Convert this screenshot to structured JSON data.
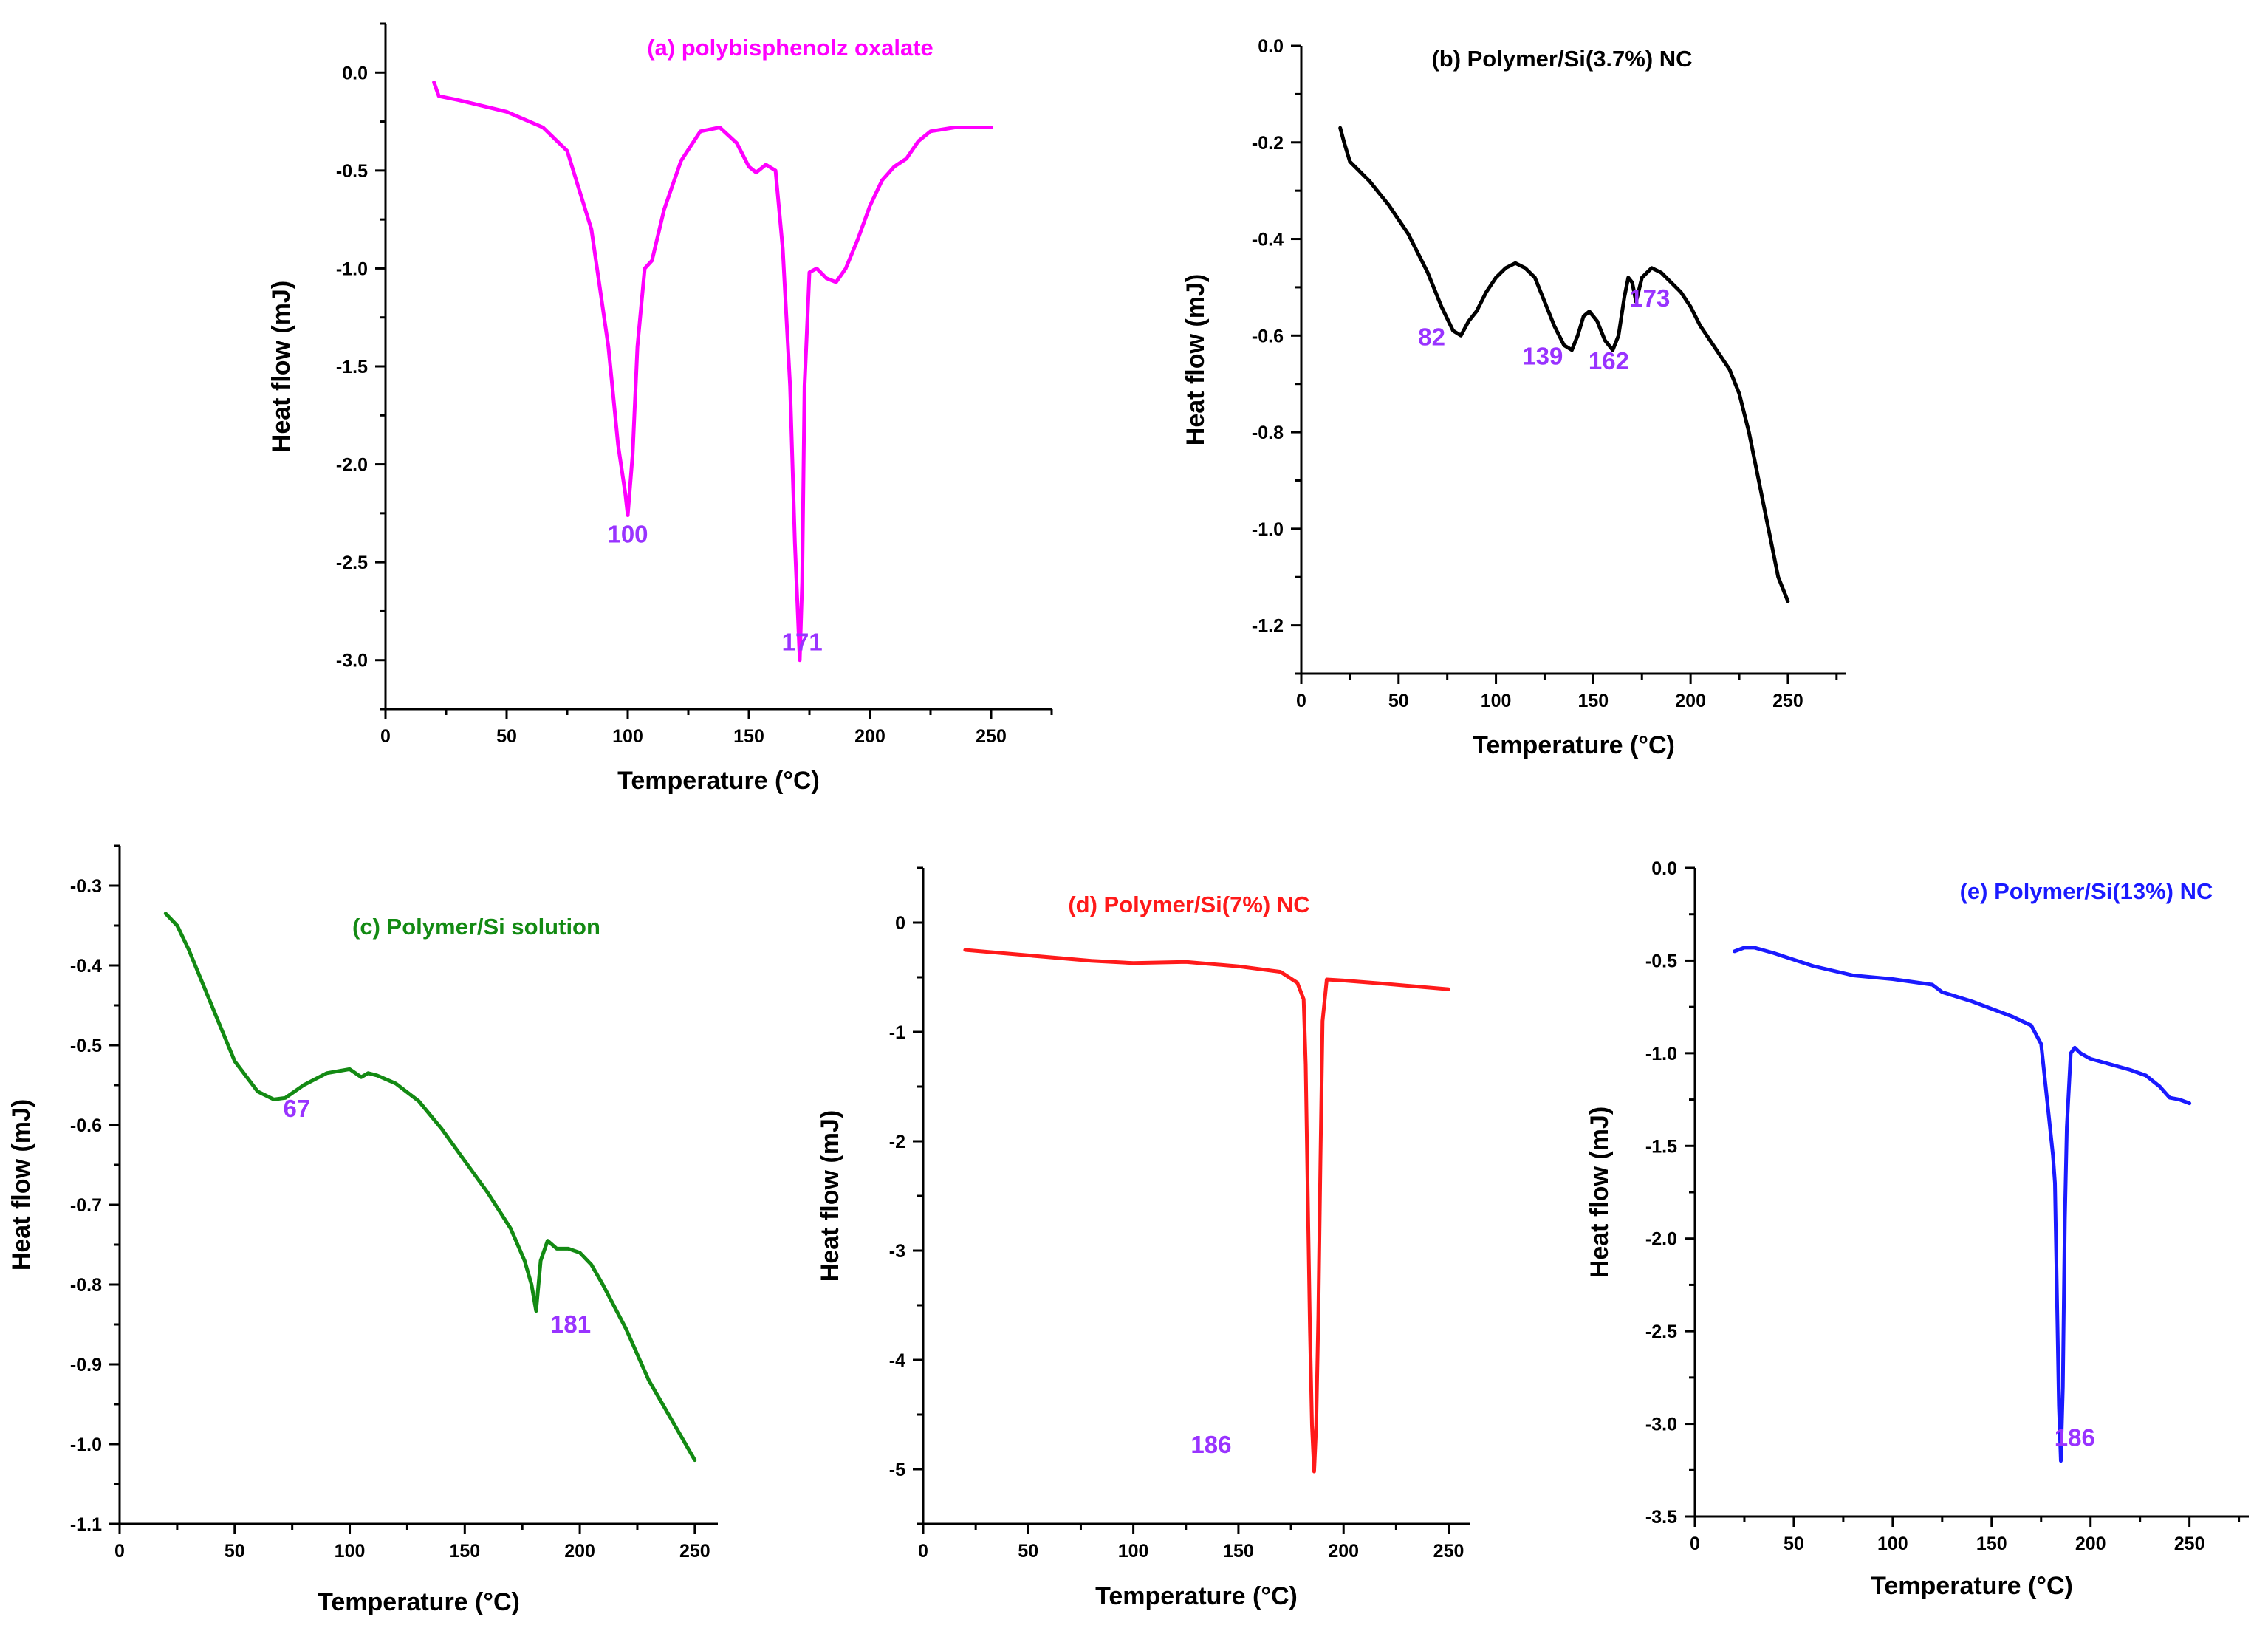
{
  "chart_data": [
    {
      "type": "line",
      "title": "(a) polybisphenolz oxalate",
      "xlabel": "Temperature (°C)",
      "ylabel": "Heat flow (mJ)",
      "xlim": [
        0,
        275
      ],
      "ylim": [
        -3.25,
        0.25
      ],
      "xticks": [
        0,
        50,
        100,
        150,
        200,
        250
      ],
      "xtick_labels": [
        "0",
        "50",
        "100",
        "150",
        "200",
        "250"
      ],
      "yticks": [
        0.0,
        -0.5,
        -1.0,
        -1.5,
        -2.0,
        -2.5,
        -3.0
      ],
      "ytick_labels": [
        "0.0",
        "-0.5",
        "-1.0",
        "-1.5",
        "-2.0",
        "-2.5",
        "-3.0"
      ],
      "color": "#ff00ff",
      "label_color": "#9933ff",
      "series": [
        {
          "name": "polybisphenolz oxalate",
          "x": [
            20,
            22,
            30,
            50,
            65,
            75,
            85,
            92,
            96,
            99,
            100,
            102,
            104,
            107,
            110,
            115,
            122,
            130,
            138,
            145,
            150,
            153,
            157,
            161,
            164,
            167,
            169,
            171,
            172,
            173,
            175,
            178,
            182,
            186,
            190,
            195,
            200,
            205,
            210,
            215,
            220,
            225,
            235,
            250
          ],
          "y": [
            -0.05,
            -0.12,
            -0.14,
            -0.2,
            -0.28,
            -0.4,
            -0.8,
            -1.4,
            -1.9,
            -2.15,
            -2.26,
            -1.95,
            -1.4,
            -1.0,
            -0.96,
            -0.7,
            -0.45,
            -0.3,
            -0.28,
            -0.36,
            -0.48,
            -0.51,
            -0.47,
            -0.5,
            -0.9,
            -1.6,
            -2.4,
            -3.0,
            -2.6,
            -1.6,
            -1.02,
            -1.0,
            -1.05,
            -1.07,
            -1.0,
            -0.85,
            -0.68,
            -0.55,
            -0.48,
            -0.44,
            -0.35,
            -0.3,
            -0.28,
            -0.28
          ]
        }
      ],
      "annotations": [
        {
          "text": "100",
          "x": 100,
          "y": -2.4
        },
        {
          "text": "171",
          "x": 172,
          "y": -2.95
        }
      ]
    },
    {
      "type": "line",
      "title": "(b) Polymer/Si(3.7%) NC",
      "xlabel": "Temperature (°C)",
      "ylabel": "Heat flow (mJ)",
      "xlim": [
        0,
        280
      ],
      "ylim": [
        -1.3,
        0.0
      ],
      "xticks": [
        0,
        50,
        100,
        150,
        200,
        250
      ],
      "xtick_labels": [
        "0",
        "50",
        "100",
        "150",
        "200",
        "250"
      ],
      "yticks": [
        0.0,
        -0.2,
        -0.4,
        -0.6,
        -0.8,
        -1.0,
        -1.2
      ],
      "ytick_labels": [
        "0.0",
        "-0.2",
        "-0.4",
        "-0.6",
        "-0.8",
        "-1.0",
        "-1.2"
      ],
      "color": "#000000",
      "label_color": "#9933ff",
      "series": [
        {
          "name": "Polymer/Si(3.7%) NC",
          "x": [
            20,
            22,
            25,
            35,
            45,
            55,
            65,
            72,
            78,
            82,
            86,
            90,
            95,
            100,
            105,
            110,
            115,
            120,
            125,
            130,
            135,
            139,
            142,
            145,
            148,
            152,
            156,
            160,
            163,
            166,
            168,
            170,
            172,
            175,
            180,
            185,
            190,
            195,
            200,
            205,
            210,
            215,
            220,
            225,
            230,
            235,
            240,
            245,
            250
          ],
          "y": [
            -0.17,
            -0.2,
            -0.24,
            -0.28,
            -0.33,
            -0.39,
            -0.47,
            -0.54,
            -0.59,
            -0.6,
            -0.57,
            -0.55,
            -0.51,
            -0.48,
            -0.46,
            -0.45,
            -0.46,
            -0.48,
            -0.53,
            -0.58,
            -0.62,
            -0.63,
            -0.6,
            -0.56,
            -0.55,
            -0.57,
            -0.61,
            -0.63,
            -0.6,
            -0.52,
            -0.48,
            -0.49,
            -0.53,
            -0.48,
            -0.46,
            -0.47,
            -0.49,
            -0.51,
            -0.54,
            -0.58,
            -0.61,
            -0.64,
            -0.67,
            -0.72,
            -0.8,
            -0.9,
            -1.0,
            -1.1,
            -1.15
          ]
        }
      ],
      "annotations": [
        {
          "text": "82",
          "x": 67,
          "y": -0.62
        },
        {
          "text": "139",
          "x": 124,
          "y": -0.66
        },
        {
          "text": "162",
          "x": 158,
          "y": -0.67
        },
        {
          "text": "173",
          "x": 179,
          "y": -0.54
        }
      ]
    },
    {
      "type": "line",
      "title": "(c) Polymer/Si solution",
      "xlabel": "Temperature (°C)",
      "ylabel": "Heat flow (mJ)",
      "xlim": [
        0,
        260
      ],
      "ylim": [
        -1.1,
        -0.25
      ],
      "xticks": [
        0,
        50,
        100,
        150,
        200,
        250
      ],
      "xtick_labels": [
        "0",
        "50",
        "100",
        "150",
        "200",
        "250"
      ],
      "yticks": [
        -0.3,
        -0.4,
        -0.5,
        -0.6,
        -0.7,
        -0.8,
        -0.9,
        -1.0,
        -1.1
      ],
      "ytick_labels": [
        "-0.3",
        "-0.4",
        "-0.5",
        "-0.6",
        "-0.7",
        "-0.8",
        "-0.9",
        "-1.0",
        "-1.1"
      ],
      "color": "#138a13",
      "label_color": "#9933ff",
      "series": [
        {
          "name": "Polymer/Si solution",
          "x": [
            20,
            25,
            30,
            40,
            50,
            60,
            67,
            72,
            80,
            90,
            100,
            105,
            108,
            112,
            120,
            130,
            140,
            150,
            160,
            170,
            176,
            179,
            181,
            183,
            186,
            190,
            195,
            200,
            205,
            210,
            220,
            230,
            240,
            250
          ],
          "y": [
            -0.335,
            -0.35,
            -0.38,
            -0.45,
            -0.52,
            -0.558,
            -0.568,
            -0.566,
            -0.55,
            -0.535,
            -0.53,
            -0.54,
            -0.535,
            -0.538,
            -0.548,
            -0.57,
            -0.605,
            -0.645,
            -0.685,
            -0.73,
            -0.77,
            -0.8,
            -0.833,
            -0.77,
            -0.745,
            -0.755,
            -0.755,
            -0.76,
            -0.775,
            -0.8,
            -0.855,
            -0.92,
            -0.97,
            -1.02
          ]
        }
      ],
      "annotations": [
        {
          "text": "67",
          "x": 77,
          "y": -0.59
        },
        {
          "text": "181",
          "x": 196,
          "y": -0.86
        }
      ]
    },
    {
      "type": "line",
      "title": "(d) Polymer/Si(7%) NC",
      "xlabel": "Temperature (°C)",
      "ylabel": "Heat flow (mJ)",
      "xlim": [
        0,
        260
      ],
      "ylim": [
        -5.5,
        0.5
      ],
      "xticks": [
        0,
        50,
        100,
        150,
        200,
        250
      ],
      "xtick_labels": [
        "0",
        "50",
        "100",
        "150",
        "200",
        "250"
      ],
      "yticks": [
        0,
        -1,
        -2,
        -3,
        -4,
        -5
      ],
      "ytick_labels": [
        "0",
        "-1",
        "-2",
        "-3",
        "-4",
        "-5"
      ],
      "color": "#ff1a1a",
      "label_color": "#9933ff",
      "series": [
        {
          "name": "Polymer/Si(7%) NC",
          "x": [
            20,
            50,
            80,
            100,
            125,
            150,
            170,
            178,
            181,
            182,
            183,
            184,
            185,
            186,
            187,
            188,
            189,
            190,
            192,
            200,
            220,
            250
          ],
          "y": [
            -0.25,
            -0.3,
            -0.35,
            -0.37,
            -0.36,
            -0.4,
            -0.45,
            -0.55,
            -0.7,
            -1.3,
            -2.5,
            -3.7,
            -4.6,
            -5.02,
            -4.6,
            -3.6,
            -2.2,
            -0.9,
            -0.52,
            -0.53,
            -0.56,
            -0.61
          ]
        }
      ],
      "annotations": [
        {
          "text": "186",
          "x": 137,
          "y": -4.85
        }
      ]
    },
    {
      "type": "line",
      "title": "(e) Polymer/Si(13%) NC",
      "xlabel": "Temperature (°C)",
      "ylabel": "Heat flow (mJ)",
      "xlim": [
        0,
        280
      ],
      "ylim": [
        -3.5,
        0.0
      ],
      "xticks": [
        0,
        50,
        100,
        150,
        200,
        250
      ],
      "xtick_labels": [
        "0",
        "50",
        "100",
        "150",
        "200",
        "250"
      ],
      "yticks": [
        0.0,
        -0.5,
        -1.0,
        -1.5,
        -2.0,
        -2.5,
        -3.0,
        -3.5
      ],
      "ytick_labels": [
        "0.0",
        "-0.5",
        "-1.0",
        "-1.5",
        "-2.0",
        "-2.5",
        "-3.0",
        "-3.5"
      ],
      "color": "#1a1aff",
      "label_color": "#9933ff",
      "series": [
        {
          "name": "Polymer/Si(13%) NC",
          "x": [
            20,
            25,
            30,
            40,
            60,
            80,
            100,
            120,
            125,
            140,
            160,
            170,
            175,
            179,
            181,
            182,
            183,
            184,
            185,
            186,
            187,
            188,
            190,
            192,
            195,
            200,
            210,
            220,
            228,
            235,
            240,
            245,
            250
          ],
          "y": [
            -0.45,
            -0.43,
            -0.43,
            -0.46,
            -0.53,
            -0.58,
            -0.6,
            -0.63,
            -0.67,
            -0.72,
            -0.8,
            -0.85,
            -0.95,
            -1.35,
            -1.55,
            -1.7,
            -2.3,
            -2.9,
            -3.2,
            -2.8,
            -1.9,
            -1.4,
            -1.0,
            -0.97,
            -1.0,
            -1.03,
            -1.06,
            -1.09,
            -1.12,
            -1.18,
            -1.24,
            -1.25,
            -1.27
          ]
        }
      ],
      "annotations": [
        {
          "text": "186",
          "x": 192,
          "y": -3.12
        }
      ]
    }
  ]
}
